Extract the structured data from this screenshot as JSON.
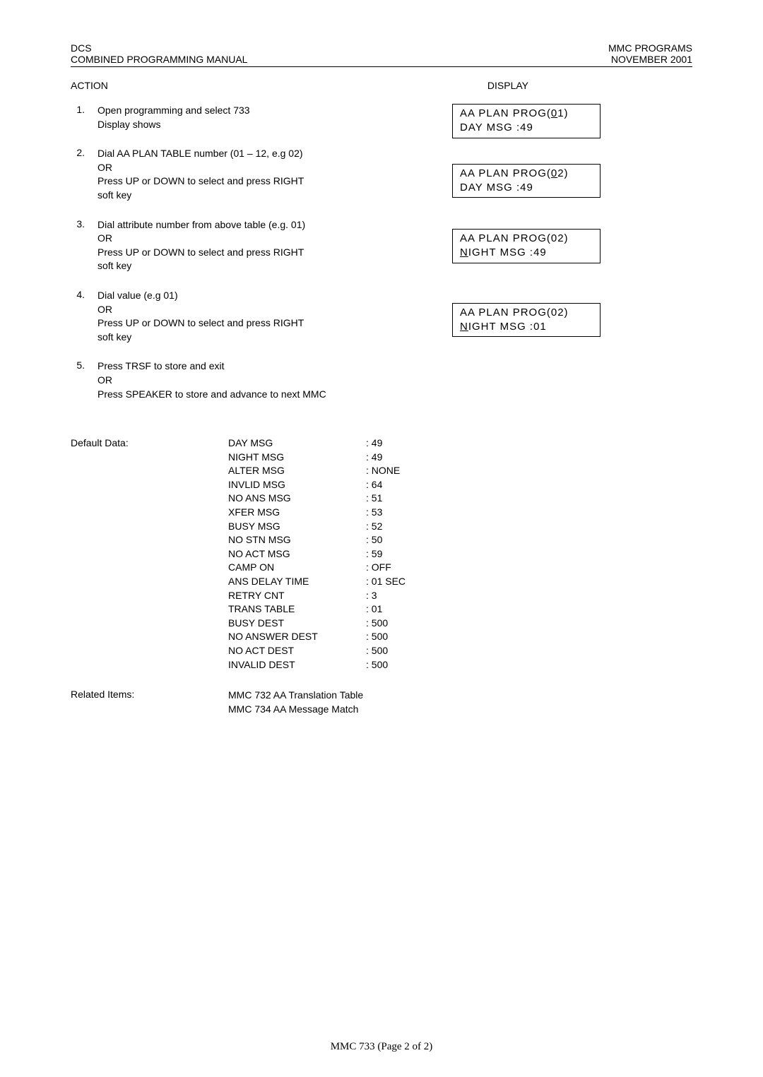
{
  "header": {
    "left_line1": "DCS",
    "left_line2": "COMBINED PROGRAMMING MANUAL",
    "right_line1": "MMC PROGRAMS",
    "right_line2": "NOVEMBER 2001"
  },
  "section_titles": {
    "left": "ACTION",
    "right": "DISPLAY"
  },
  "steps": [
    {
      "num": "1.",
      "text": "Open programming and select 733\nDisplay shows"
    },
    {
      "num": "2.",
      "text": "Dial AA PLAN TABLE number (01 – 12, e.g 02)\nOR\nPress UP or DOWN to select and press RIGHT\nsoft key"
    },
    {
      "num": "3.",
      "text": "Dial attribute number from above table (e.g. 01)\nOR\nPress UP or DOWN to select and press RIGHT\nsoft key"
    },
    {
      "num": "4.",
      "text": "Dial value (e.g 01)\nOR\nPress UP or DOWN to select and press RIGHT\nsoft key"
    },
    {
      "num": "5.",
      "text": "Press TRSF to store and exit\nOR\nPress SPEAKER to store and advance to next MMC"
    }
  ],
  "displays": [
    {
      "line1_pre": "AA  PLAN  PROG(",
      "line1_u": "0",
      "line1_post": "1)",
      "line2_pre": "DAY MSG      :49",
      "line2_u": "",
      "line2_post": ""
    },
    {
      "line1_pre": "AA  PLAN  PROG(",
      "line1_u": "0",
      "line1_post": "2)",
      "line2_pre": "DAY MSG      :49",
      "line2_u": "",
      "line2_post": ""
    },
    {
      "line1_pre": "AA  PLAN  PROG(02)",
      "line1_u": "",
      "line1_post": "",
      "line2_pre": "",
      "line2_u": "N",
      "line2_post": "IGHT MSG   :49"
    },
    {
      "line1_pre": "AA  PLAN  PROG(02)",
      "line1_u": "",
      "line1_post": "",
      "line2_pre": "",
      "line2_u": "N",
      "line2_post": "IGHT MSG    :01"
    }
  ],
  "default_data": {
    "label": "Default Data:",
    "rows": [
      {
        "key": "DAY MSG",
        "val": ": 49"
      },
      {
        "key": "NIGHT MSG",
        "val": ": 49"
      },
      {
        "key": "ALTER MSG",
        "val": ": NONE"
      },
      {
        "key": "INVLID MSG",
        "val": ": 64"
      },
      {
        "key": "NO ANS MSG",
        "val": ": 51"
      },
      {
        "key": "XFER MSG",
        "val": ": 53"
      },
      {
        "key": "BUSY MSG",
        "val": ": 52"
      },
      {
        "key": "NO STN MSG",
        "val": ": 50"
      },
      {
        "key": "NO ACT MSG",
        "val": ": 59"
      },
      {
        "key": "CAMP ON",
        "val": ": OFF"
      },
      {
        "key": "ANS DELAY TIME",
        "val": ": 01 SEC"
      },
      {
        "key": "RETRY CNT",
        "val": ": 3"
      },
      {
        "key": "TRANS TABLE",
        "val": ": 01"
      },
      {
        "key": "BUSY DEST",
        "val": ": 500"
      },
      {
        "key": "NO ANSWER DEST",
        "val": ": 500"
      },
      {
        "key": "NO ACT DEST",
        "val": ": 500"
      },
      {
        "key": "INVALID DEST",
        "val": ": 500"
      }
    ]
  },
  "related_items": {
    "label": "Related Items:",
    "lines": [
      "MMC 732 AA Translation Table",
      "MMC 734 AA Message Match"
    ]
  },
  "footer": "MMC 733 (Page 2 of 2)"
}
